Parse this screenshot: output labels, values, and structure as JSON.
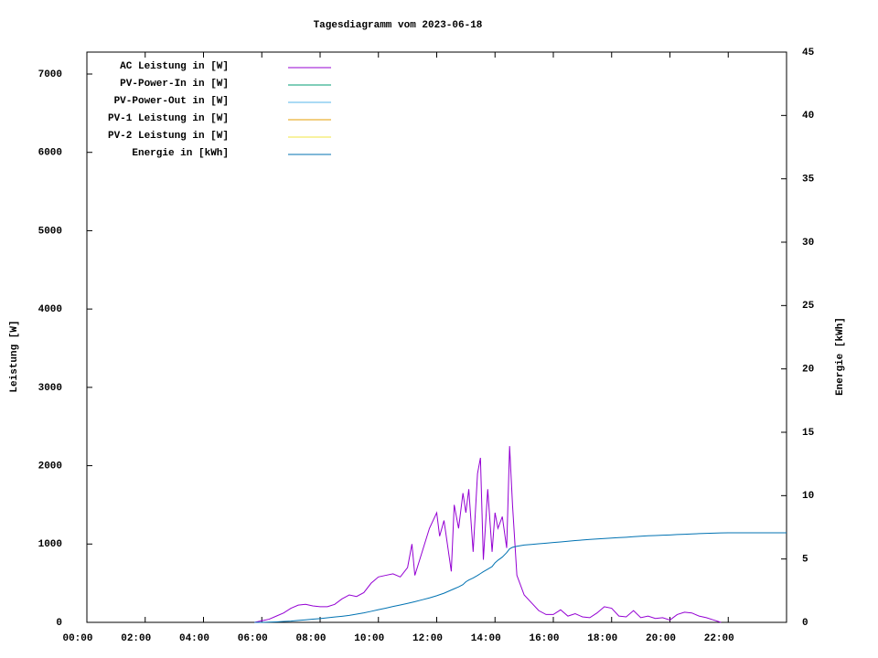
{
  "chart_data": {
    "type": "line",
    "title": "Tagesdiagramm vom 2023-06-18",
    "ylabel": "Leistung [W]",
    "y2label": "Energie [kWh]",
    "xlim": [
      0,
      24
    ],
    "xticks": [
      {
        "value": 0,
        "label": "00:00"
      },
      {
        "value": 2,
        "label": "02:00"
      },
      {
        "value": 4,
        "label": "04:00"
      },
      {
        "value": 6,
        "label": "06:00"
      },
      {
        "value": 8,
        "label": "08:00"
      },
      {
        "value": 10,
        "label": "10:00"
      },
      {
        "value": 12,
        "label": "12:00"
      },
      {
        "value": 14,
        "label": "14:00"
      },
      {
        "value": 16,
        "label": "16:00"
      },
      {
        "value": 18,
        "label": "18:00"
      },
      {
        "value": 20,
        "label": "20:00"
      },
      {
        "value": 22,
        "label": "22:00"
      }
    ],
    "ylim": [
      0,
      7280
    ],
    "yticks": [
      0,
      1000,
      2000,
      3000,
      4000,
      5000,
      6000,
      7000
    ],
    "y2lim": [
      0,
      45
    ],
    "y2ticks": [
      0,
      5,
      10,
      15,
      20,
      25,
      30,
      35,
      40,
      45
    ],
    "legend": "top-left",
    "x": [
      5.75,
      6,
      6.25,
      6.5,
      6.75,
      7,
      7.25,
      7.5,
      7.75,
      8,
      8.25,
      8.5,
      8.75,
      9,
      9.25,
      9.5,
      9.75,
      10,
      10.25,
      10.5,
      10.75,
      11,
      11.15,
      11.25,
      11.5,
      11.75,
      12,
      12.1,
      12.25,
      12.5,
      12.6,
      12.75,
      12.9,
      13,
      13.1,
      13.25,
      13.4,
      13.5,
      13.6,
      13.75,
      13.9,
      14,
      14.1,
      14.25,
      14.4,
      14.5,
      14.6,
      14.75,
      15,
      15.25,
      15.5,
      15.75,
      16,
      16.25,
      16.5,
      16.75,
      17,
      17.25,
      17.5,
      17.75,
      18,
      18.25,
      18.5,
      18.75,
      19,
      19.25,
      19.5,
      19.75,
      20,
      20.25,
      20.5,
      20.75,
      21,
      21.25,
      21.5,
      21.75,
      22,
      23,
      24
    ],
    "series": [
      {
        "name": "AC Leistung in [W]",
        "color": "#9400d3",
        "values": [
          0,
          20,
          40,
          80,
          120,
          180,
          220,
          230,
          210,
          200,
          200,
          230,
          300,
          350,
          330,
          380,
          500,
          580,
          600,
          620,
          580,
          700,
          1000,
          600,
          900,
          1200,
          1400,
          1100,
          1300,
          650,
          1500,
          1200,
          1650,
          1400,
          1700,
          900,
          1900,
          2100,
          800,
          1700,
          900,
          1400,
          1200,
          1350,
          950,
          2250,
          1500,
          600,
          350,
          250,
          150,
          100,
          100,
          160,
          80,
          110,
          70,
          60,
          120,
          200,
          180,
          80,
          70,
          150,
          60,
          80,
          50,
          60,
          30,
          100,
          130,
          120,
          80,
          60,
          30,
          0,
          null,
          null,
          null
        ]
      },
      {
        "name": "PV-Power-In in [W]",
        "color": "#009e73",
        "values": [
          null,
          null,
          null,
          null,
          null,
          null,
          null,
          null,
          null,
          null,
          null,
          null,
          null,
          null,
          null,
          null,
          null,
          null,
          null,
          null,
          null,
          null,
          null,
          null,
          null,
          null,
          null,
          null,
          null,
          null,
          null,
          null,
          null,
          null,
          null,
          null,
          null,
          null,
          null,
          null,
          null,
          null,
          null,
          null,
          null,
          null,
          null,
          null,
          null,
          null,
          null,
          null,
          null,
          null,
          null,
          null,
          null,
          null,
          null,
          null,
          null,
          null,
          null,
          null,
          null,
          null,
          null,
          null,
          null,
          null,
          null,
          null,
          null,
          null,
          null,
          null,
          null,
          null,
          null
        ]
      },
      {
        "name": "PV-Power-Out in [W]",
        "color": "#56b4e9",
        "values": [
          null,
          null,
          null,
          null,
          null,
          null,
          null,
          null,
          null,
          null,
          null,
          null,
          null,
          null,
          null,
          null,
          null,
          null,
          null,
          null,
          null,
          null,
          null,
          null,
          null,
          null,
          null,
          null,
          null,
          null,
          null,
          null,
          null,
          null,
          null,
          null,
          null,
          null,
          null,
          null,
          null,
          null,
          null,
          null,
          null,
          null,
          null,
          null,
          null,
          null,
          null,
          null,
          null,
          null,
          null,
          null,
          null,
          null,
          null,
          null,
          null,
          null,
          null,
          null,
          null,
          null,
          null,
          null,
          null,
          null,
          null,
          null,
          null,
          null,
          null,
          null,
          null,
          null,
          null
        ]
      },
      {
        "name": "PV-1 Leistung in [W]",
        "color": "#e69f00",
        "values": [
          null,
          null,
          null,
          null,
          null,
          null,
          null,
          null,
          null,
          null,
          null,
          null,
          null,
          null,
          null,
          null,
          null,
          null,
          null,
          null,
          null,
          null,
          null,
          null,
          null,
          null,
          null,
          null,
          null,
          null,
          null,
          null,
          null,
          null,
          null,
          null,
          null,
          null,
          null,
          null,
          null,
          null,
          null,
          null,
          null,
          null,
          null,
          null,
          null,
          null,
          null,
          null,
          null,
          null,
          null,
          null,
          null,
          null,
          null,
          null,
          null,
          null,
          null,
          null,
          null,
          null,
          null,
          null,
          null,
          null,
          null,
          null,
          null,
          null,
          null,
          null,
          null,
          null,
          null
        ]
      },
      {
        "name": "PV-2 Leistung in [W]",
        "color": "#f0e442",
        "values": [
          null,
          null,
          null,
          null,
          null,
          null,
          null,
          null,
          null,
          null,
          null,
          null,
          null,
          null,
          null,
          null,
          null,
          null,
          null,
          null,
          null,
          null,
          null,
          null,
          null,
          null,
          null,
          null,
          null,
          null,
          null,
          null,
          null,
          null,
          null,
          null,
          null,
          null,
          null,
          null,
          null,
          null,
          null,
          null,
          null,
          null,
          null,
          null,
          null,
          null,
          null,
          null,
          null,
          null,
          null,
          null,
          null,
          null,
          null,
          null,
          null,
          null,
          null,
          null,
          null,
          null,
          null,
          null,
          null,
          null,
          null,
          null,
          null,
          null,
          null,
          null,
          null,
          null,
          null
        ]
      },
      {
        "name": "Energie in [kWh]",
        "color": "#0072b2",
        "axis": "y2",
        "values": [
          0,
          0,
          0.02,
          0.04,
          0.07,
          0.1,
          0.15,
          0.2,
          0.25,
          0.3,
          0.36,
          0.42,
          0.48,
          0.55,
          0.65,
          0.75,
          0.87,
          1.0,
          1.12,
          1.25,
          1.37,
          1.5,
          1.58,
          1.63,
          1.78,
          1.93,
          2.1,
          2.18,
          2.3,
          2.55,
          2.65,
          2.8,
          2.98,
          3.2,
          3.34,
          3.5,
          3.7,
          3.85,
          4.0,
          4.2,
          4.4,
          4.7,
          4.9,
          5.15,
          5.5,
          5.8,
          5.92,
          6.0,
          6.1,
          6.15,
          6.2,
          6.25,
          6.3,
          6.35,
          6.4,
          6.45,
          6.5,
          6.54,
          6.58,
          6.62,
          6.65,
          6.69,
          6.72,
          6.76,
          6.8,
          6.83,
          6.85,
          6.88,
          6.9,
          6.93,
          6.95,
          6.98,
          7.0,
          7.02,
          7.04,
          7.06,
          7.07,
          7.07,
          7.07
        ]
      }
    ]
  }
}
